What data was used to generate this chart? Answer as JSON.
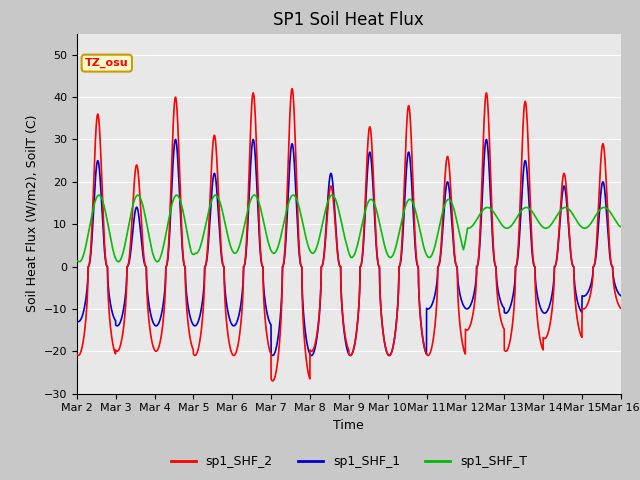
{
  "title": "SP1 Soil Heat Flux",
  "xlabel": "Time",
  "ylabel": "Soil Heat Flux (W/m2), SoilT (C)",
  "ylim": [
    -30,
    55
  ],
  "yticks": [
    -30,
    -20,
    -10,
    0,
    10,
    20,
    30,
    40,
    50
  ],
  "xlim_start": 0,
  "xlim_end": 14,
  "xtick_labels": [
    "Mar 2",
    "Mar 3",
    "Mar 4",
    "Mar 5",
    "Mar 6",
    "Mar 7",
    "Mar 8",
    "Mar 9",
    "Mar 10",
    "Mar 11",
    "Mar 12",
    "Mar 13",
    "Mar 14",
    "Mar 15",
    "Mar 16"
  ],
  "series": {
    "sp1_SHF_2": {
      "color": "#ff0000",
      "linewidth": 1.2
    },
    "sp1_SHF_1": {
      "color": "#0000cc",
      "linewidth": 1.2
    },
    "sp1_SHF_T": {
      "color": "#00bb00",
      "linewidth": 1.2
    }
  },
  "tz_label": "TZ_osu",
  "tz_box_facecolor": "#ffffcc",
  "tz_box_edgecolor": "#cc9900",
  "fig_facecolor": "#c8c8c8",
  "ax_facecolor": "#e8e8e8",
  "grid_color": "#ffffff",
  "title_fontsize": 12,
  "axis_label_fontsize": 9,
  "tick_fontsize": 8
}
